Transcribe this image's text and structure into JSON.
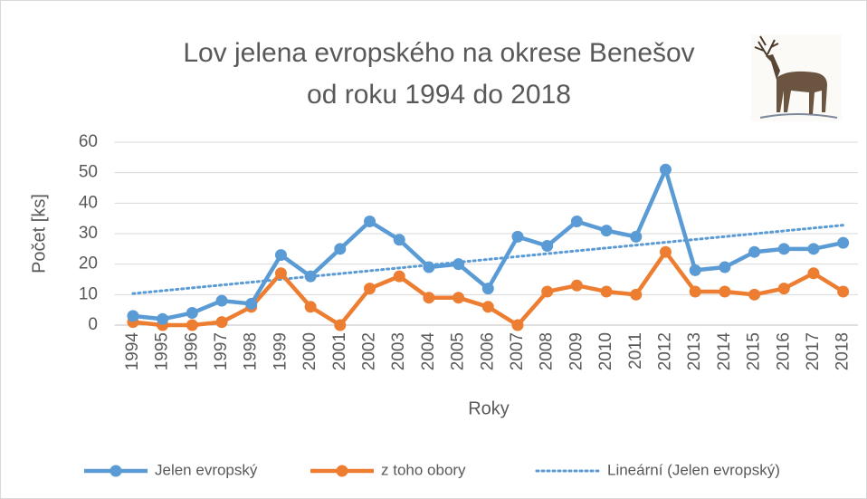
{
  "chart_data": {
    "type": "line",
    "title": [
      "Lov jelena evropského na okrese Benešov",
      "od roku 1994 do 2018"
    ],
    "xlabel": "Roky",
    "ylabel": "Počet [ks]",
    "categories": [
      "1994",
      "1995",
      "1996",
      "1997",
      "1998",
      "1999",
      "2000",
      "2001",
      "2002",
      "2003",
      "2004",
      "2005",
      "2006",
      "2007",
      "2008",
      "2009",
      "2010",
      "2011",
      "2012",
      "2013",
      "2014",
      "2015",
      "2016",
      "2017",
      "2018"
    ],
    "series": [
      {
        "name": "Jelen evropský",
        "color": "#5b9bd5",
        "values": [
          3,
          2,
          4,
          8,
          7,
          23,
          16,
          25,
          34,
          28,
          19,
          20,
          12,
          29,
          26,
          34,
          31,
          29,
          51,
          18,
          19,
          24,
          25,
          25,
          27
        ]
      },
      {
        "name": "z toho obory",
        "color": "#ed7d31",
        "values": [
          1,
          0,
          0,
          1,
          6,
          17,
          6,
          0,
          12,
          16,
          9,
          9,
          6,
          0,
          11,
          13,
          11,
          10,
          24,
          11,
          11,
          10,
          12,
          17,
          11
        ]
      }
    ],
    "trendline": {
      "name": "Lineární (Jelen evropský)",
      "of_series": 0,
      "kind": "linear",
      "color": "#5b9bd5",
      "style": "dotted"
    },
    "ylim": [
      0,
      60
    ],
    "yticks": [
      0,
      10,
      20,
      30,
      40,
      50,
      60
    ],
    "grid": true,
    "legend": "bottom"
  }
}
